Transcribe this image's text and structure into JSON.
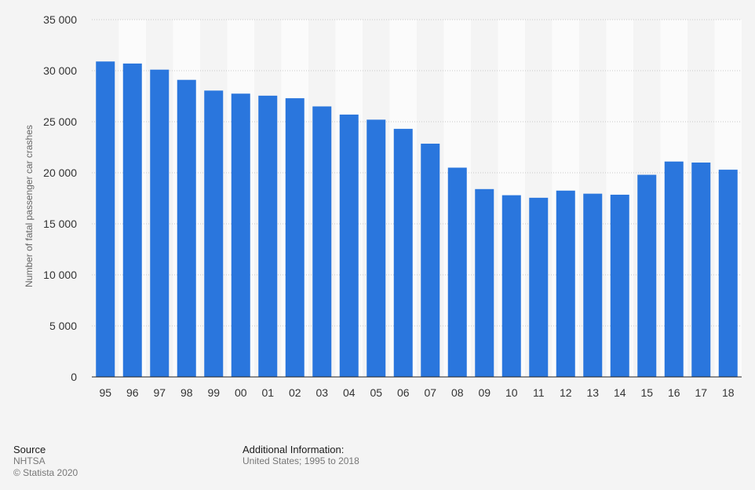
{
  "chart_data": {
    "type": "bar",
    "title": "",
    "xlabel": "",
    "ylabel": "Number of fatal passenger car crashes",
    "categories": [
      "95",
      "96",
      "97",
      "98",
      "99",
      "00",
      "01",
      "02",
      "03",
      "04",
      "05",
      "06",
      "07",
      "08",
      "09",
      "10",
      "11",
      "12",
      "13",
      "14",
      "15",
      "16",
      "17",
      "18"
    ],
    "values": [
      30900,
      30700,
      30100,
      29100,
      28050,
      27750,
      27550,
      27300,
      26500,
      25700,
      25200,
      24300,
      22850,
      20500,
      18400,
      17800,
      17550,
      18250,
      17950,
      17850,
      19800,
      21100,
      21000,
      20300
    ],
    "ylim": [
      0,
      35000
    ],
    "yticks": [
      0,
      5000,
      10000,
      15000,
      20000,
      25000,
      30000,
      35000
    ],
    "ytick_labels": [
      "0",
      "5 000",
      "10 000",
      "15 000",
      "20 000",
      "25 000",
      "30 000",
      "35 000"
    ],
    "grid": true,
    "bar_color": "#2a76dd",
    "stripe_color": "#fbfbfb"
  },
  "footer": {
    "source_heading": "Source",
    "source_name": "NHTSA",
    "copyright": "© Statista 2020",
    "info_heading": "Additional Information:",
    "info_text": "United States; 1995 to 2018"
  }
}
